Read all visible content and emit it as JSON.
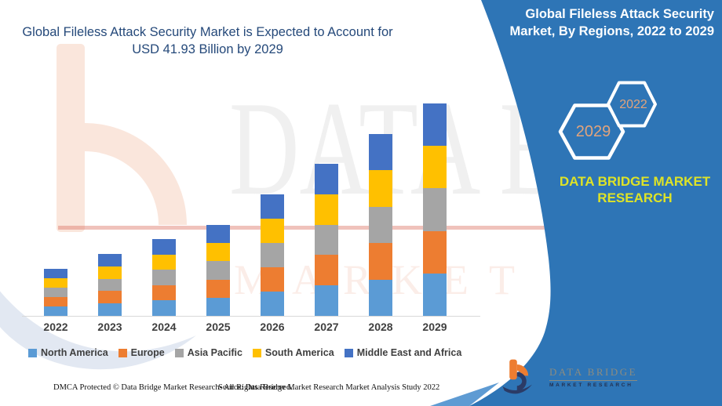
{
  "header": {
    "left_title_line1": "Global Fileless Attack Security Market is Expected to Account for",
    "left_title_line2": "USD 41.93 Billion by 2029",
    "right_title_line1": "Global Fileless Attack Security",
    "right_title_line2": "Market, By Regions, 2022 to 2029"
  },
  "side_panel": {
    "hexagons": [
      {
        "label": "2029"
      },
      {
        "label": "2022"
      }
    ],
    "brand_line1": "DATA BRIDGE MARKET",
    "brand_line2": "RESEARCH"
  },
  "chart_data": {
    "type": "bar",
    "stacked": true,
    "title": "Global Fileless Attack Security Market, By Regions, 2022 to 2029",
    "unit": "USD Billion",
    "categories": [
      "2022",
      "2023",
      "2024",
      "2025",
      "2026",
      "2027",
      "2028",
      "2029"
    ],
    "series": [
      {
        "name": "North America",
        "color": "#5B9BD5",
        "values": [
          1.86,
          2.44,
          3.03,
          3.59,
          4.8,
          6.0,
          7.18,
          8.39
        ]
      },
      {
        "name": "Europe",
        "color": "#ED7D31",
        "values": [
          1.86,
          2.44,
          3.03,
          3.59,
          4.8,
          6.0,
          7.18,
          8.39
        ]
      },
      {
        "name": "Asia Pacific",
        "color": "#A5A5A5",
        "values": [
          1.86,
          2.44,
          3.03,
          3.59,
          4.8,
          6.0,
          7.18,
          8.39
        ]
      },
      {
        "name": "South America",
        "color": "#FFC000",
        "values": [
          1.86,
          2.44,
          3.03,
          3.59,
          4.8,
          6.0,
          7.18,
          8.39
        ]
      },
      {
        "name": "Middle East and Africa",
        "color": "#4472C4",
        "values": [
          1.86,
          2.44,
          3.03,
          3.59,
          4.8,
          6.0,
          7.18,
          8.39
        ]
      }
    ],
    "totals_usd_billion": [
      9.3,
      12.2,
      15.2,
      17.9,
      24.0,
      30.0,
      35.9,
      41.93
    ],
    "ylim": [
      0,
      42
    ],
    "grid": false,
    "y_axis_shown": false,
    "legend_position": "bottom",
    "note": "No value axis shown in figure; totals estimated from bar heights with 2029 anchored to USD 41.93 billion from the title. Regional segments appear equal within each bar."
  },
  "footer": {
    "left": "DMCA Protected © Data Bridge Market Research- All Rights Reserved.",
    "right": "Source: Data Bridge Market Research Market Analysis Study 2022"
  },
  "logo": {
    "name": "DATA BRIDGE",
    "subtitle": "MARKET RESEARCH"
  },
  "watermark": {
    "line1": "DATA BRIDGE",
    "line2": "MARKET RESEARCH"
  },
  "colors": {
    "ribbon_blue": "#2E75B6",
    "ribbon_light_wedge": "#5E9BD3",
    "title_navy": "#25497A",
    "brand_yellow": "#DEE327",
    "hex_year_text": "#E2A47C",
    "axis_label": "#3F3F3F",
    "axis_line": "#D9D9D9"
  }
}
